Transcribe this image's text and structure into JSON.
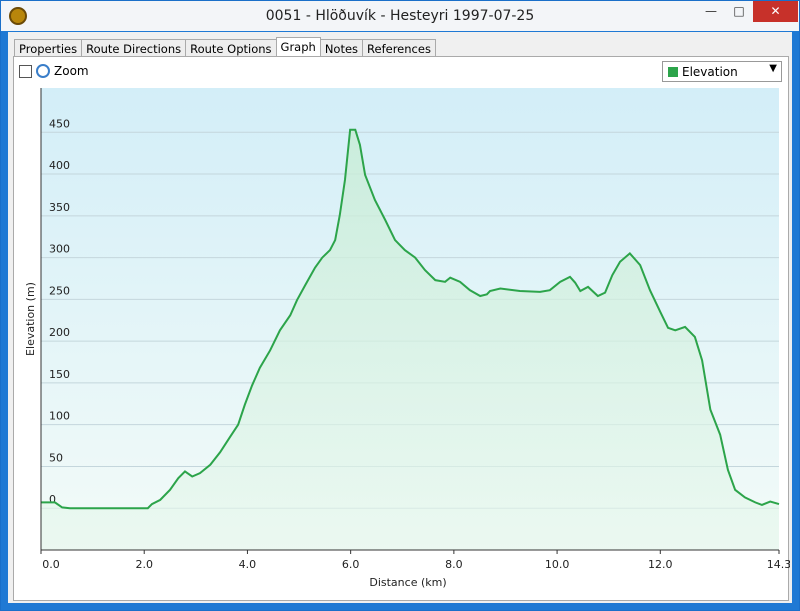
{
  "window": {
    "title": "0051 - Hlöðuvík - Hesteyri 1997-07-25"
  },
  "tabs": [
    "Properties",
    "Route Directions",
    "Route Options",
    "Graph",
    "Notes",
    "References"
  ],
  "toolbar": {
    "zoom": "Zoom"
  },
  "chart_data": {
    "type": "line",
    "x_label": "Distance  (km)",
    "y_label": "Elevation (m)",
    "x": [
      0,
      0.27,
      0.41,
      0.56,
      2.07,
      2.15,
      2.31,
      2.5,
      2.66,
      2.79,
      2.93,
      3.08,
      3.28,
      3.47,
      3.66,
      3.82,
      3.95,
      4.09,
      4.24,
      4.44,
      4.63,
      4.83,
      4.96,
      5.12,
      5.31,
      5.45,
      5.6,
      5.7,
      5.79,
      5.89,
      5.99,
      6.09,
      6.18,
      6.28,
      6.47,
      6.67,
      6.86,
      7.05,
      7.25,
      7.44,
      7.64,
      7.83,
      7.93,
      8.12,
      8.31,
      8.51,
      8.64,
      8.7,
      8.9,
      9.28,
      9.67,
      9.86,
      10.06,
      10.25,
      10.35,
      10.45,
      10.6,
      10.79,
      10.93,
      11.07,
      11.22,
      11.41,
      11.61,
      11.8,
      12.0,
      12.15,
      12.29,
      12.48,
      12.67,
      12.81,
      12.97,
      13.16,
      13.31,
      13.45,
      13.64,
      13.84,
      13.97,
      14.13,
      14.3
    ],
    "series": [
      {
        "name": "Elevation",
        "color": "#2ca44a",
        "values": [
          7,
          7,
          1,
          0,
          0,
          5,
          10,
          22,
          36,
          44,
          38,
          42,
          52,
          67,
          85,
          100,
          124,
          147,
          168,
          189,
          213,
          231,
          249,
          267,
          288,
          300,
          309,
          321,
          351,
          393,
          453,
          453,
          435,
          399,
          369,
          345,
          321,
          309,
          300,
          285,
          273,
          271,
          276,
          271,
          261,
          254,
          256,
          260,
          263,
          260,
          259,
          261,
          271,
          277,
          270,
          260,
          265,
          254,
          258,
          279,
          295,
          305,
          291,
          261,
          235,
          216,
          213,
          217,
          205,
          177,
          118,
          88,
          46,
          22,
          13,
          7,
          4,
          8,
          5
        ]
      }
    ],
    "xlim": [
      0,
      14.3
    ],
    "ylim": [
      -50,
      503
    ],
    "xticks": [
      {
        "value": 0,
        "label": "0.0"
      },
      {
        "value": 2,
        "label": "2.0"
      },
      {
        "value": 4,
        "label": "4.0"
      },
      {
        "value": 6,
        "label": "6.0"
      },
      {
        "value": 8,
        "label": "8.0"
      },
      {
        "value": 10,
        "label": "10.0"
      },
      {
        "value": 12,
        "label": "12.0"
      },
      14.3
    ],
    "yticks": [
      0,
      50,
      100,
      150,
      200,
      250,
      300,
      350,
      400,
      450
    ],
    "grid": true
  }
}
